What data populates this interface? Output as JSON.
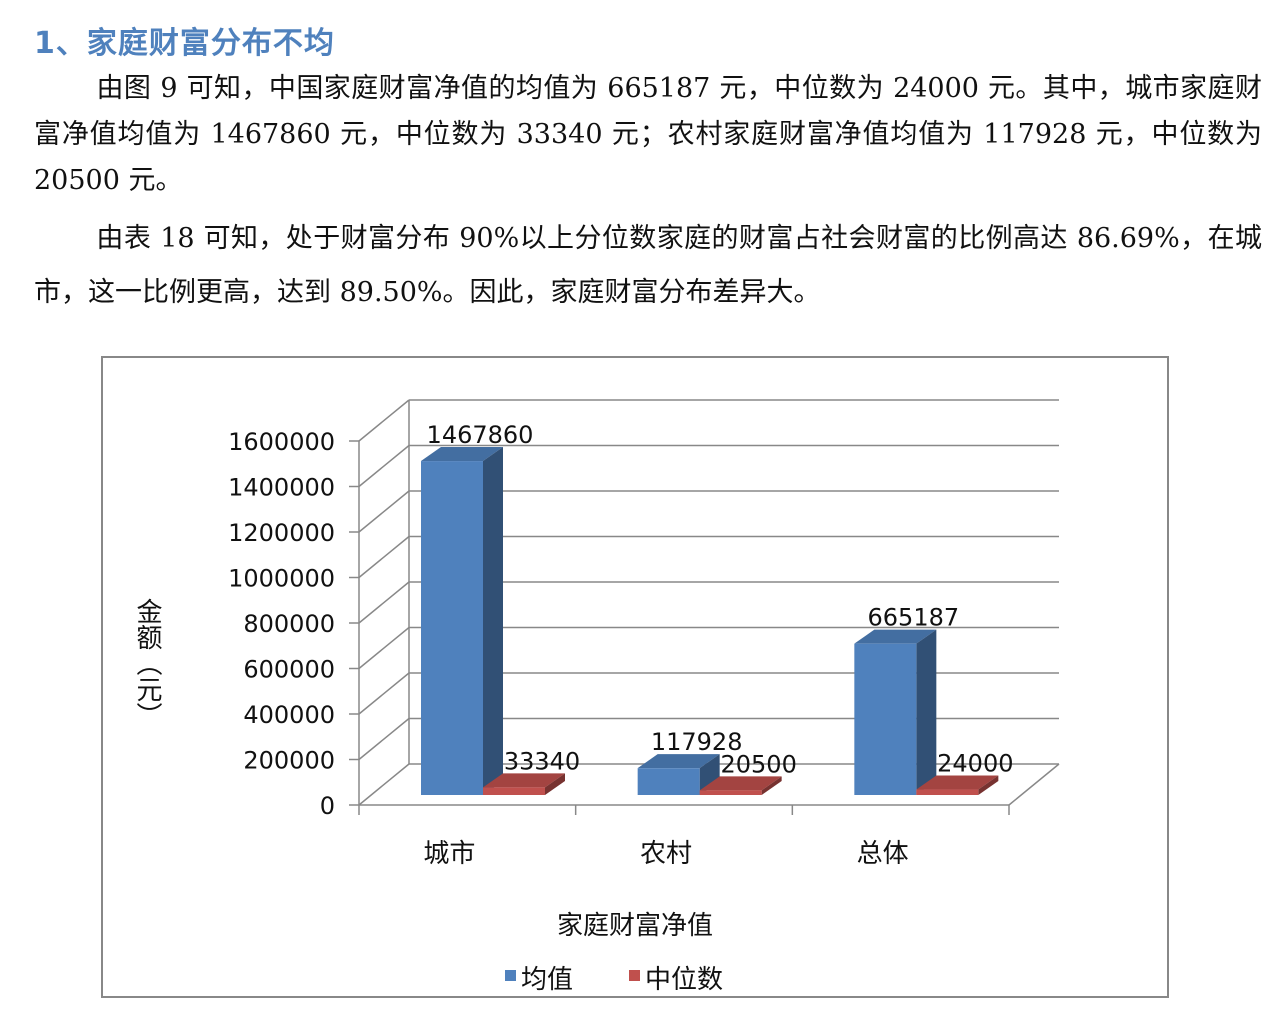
{
  "section": {
    "heading": "1、家庭财富分布不均",
    "paragraph1": "由图 9 可知，中国家庭财富净值的均值为 665187 元，中位数为 24000 元。其中，城市家庭财富净值均值为 1467860 元，中位数为 33340 元；农村家庭财富净值均值为 117928 元，中位数为 20500 元。",
    "paragraph2": "由表 18 可知，处于财富分布 90%以上分位数家庭的财富占社会财富的比例高达 86.69%，在城市，这一比例更高，达到 89.50%。因此，家庭财富分布差异大。"
  },
  "chart_data": {
    "type": "bar",
    "categories": [
      "城市",
      "农村",
      "总体"
    ],
    "series": [
      {
        "name": "均值",
        "values": [
          1467860,
          117928,
          665187
        ],
        "color": "#4f81bd"
      },
      {
        "name": "中位数",
        "values": [
          33340,
          20500,
          24000
        ],
        "color": "#c0504d"
      }
    ],
    "data_labels": [
      [
        "1467860",
        "117928",
        "665187"
      ],
      [
        "33340",
        "20500",
        "24000"
      ]
    ],
    "xlabel": "家庭财富净值",
    "ylabel": "金额（元）",
    "yticks": [
      "0",
      "200000",
      "400000",
      "600000",
      "800000",
      "1000000",
      "1200000",
      "1400000",
      "1600000"
    ],
    "ylim": [
      0,
      1600000
    ],
    "grid": true,
    "legend_position": "bottom",
    "style": "3d-column"
  }
}
